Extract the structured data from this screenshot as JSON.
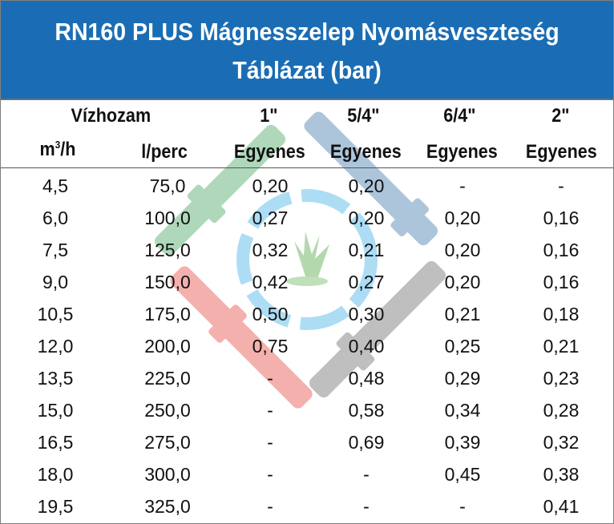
{
  "title": {
    "line1": "RN160 PLUS Mágnesszelep Nyomásveszteség",
    "line2": "Táblázat (bar)"
  },
  "headers": {
    "flow_group": "Vízhozam",
    "unit_m3h": "m",
    "unit_m3h_sup": "3",
    "unit_m3h_tail": "/h",
    "unit_lperc": "l/perc",
    "sizes": [
      "1\"",
      "5/4\"",
      "6/4\"",
      "2\""
    ],
    "type": [
      "Egyenes",
      "Egyenes",
      "Egyenes",
      "Egyenes"
    ]
  },
  "rows": [
    [
      "4,5",
      "75,0",
      "0,20",
      "0,20",
      "-",
      "-"
    ],
    [
      "6,0",
      "100,0",
      "0,27",
      "0,20",
      "0,20",
      "0,16"
    ],
    [
      "7,5",
      "125,0",
      "0,32",
      "0,21",
      "0,20",
      "0,16"
    ],
    [
      "9,0",
      "150,0",
      "0,42",
      "0,27",
      "0,20",
      "0,16"
    ],
    [
      "10,5",
      "175,0",
      "0,50",
      "0,30",
      "0,21",
      "0,18"
    ],
    [
      "12,0",
      "200,0",
      "0,75",
      "0,40",
      "0,25",
      "0,21"
    ],
    [
      "13,5",
      "225,0",
      "-",
      "0,48",
      "0,29",
      "0,23"
    ],
    [
      "15,0",
      "250,0",
      "-",
      "0,58",
      "0,34",
      "0,28"
    ],
    [
      "16,5",
      "275,0",
      "-",
      "0,69",
      "0,39",
      "0,32"
    ],
    [
      "18,0",
      "300,0",
      "-",
      "-",
      "0,45",
      "0,38"
    ],
    [
      "19,5",
      "325,0",
      "-",
      "-",
      "-",
      "0,41"
    ]
  ],
  "colors": {
    "title_bg": "#1a6db4",
    "title_text": "#ffffff"
  }
}
